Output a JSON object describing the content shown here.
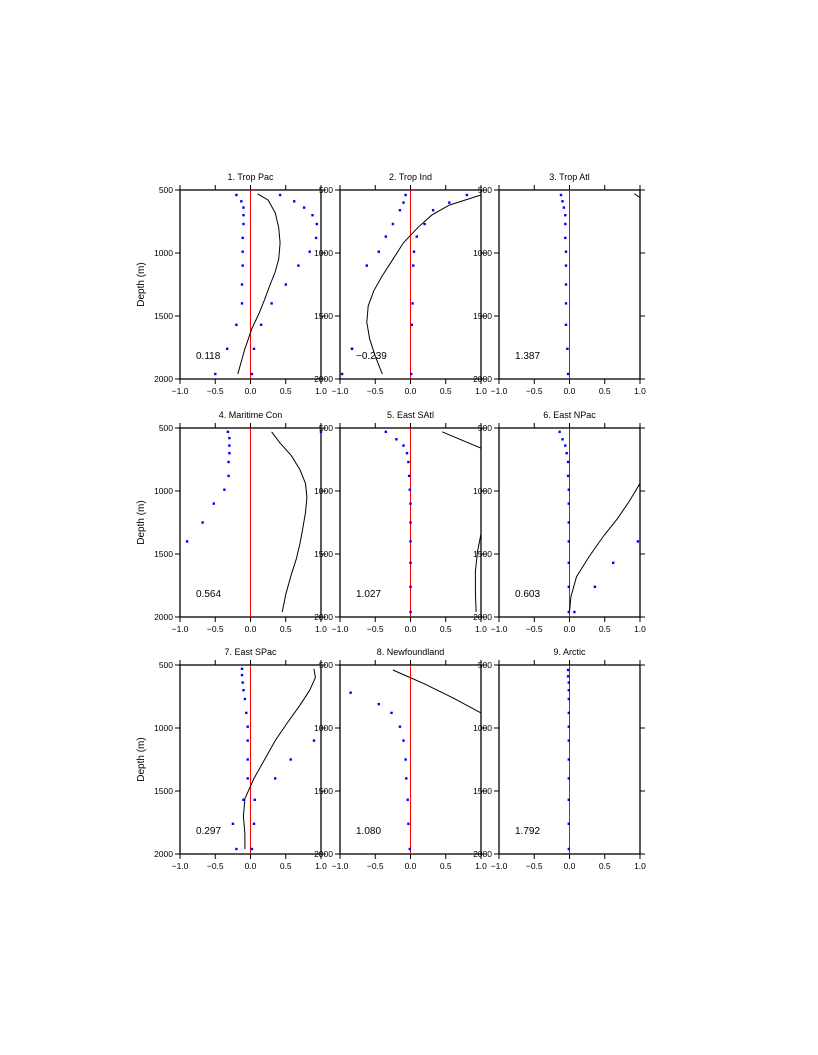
{
  "figure": {
    "ylabel": "Depth (m)"
  },
  "colors": {
    "frame": "#000000",
    "curve": "#000000",
    "zero_line": "#ff0000",
    "dots": "#0000ff"
  },
  "chart_data": [
    {
      "type": "line",
      "title": "1. Trop Pac",
      "annotation": "0.118",
      "xlim": [
        -1,
        1
      ],
      "ylim": [
        2000,
        500
      ],
      "xticks": [
        "−1.0",
        "−0.5",
        "0.0",
        "0.5",
        "1.0"
      ],
      "yticks": [
        "500",
        "1000",
        "1500",
        "2000"
      ],
      "curve": {
        "x": [
          0.1,
          0.25,
          0.35,
          0.4,
          0.42,
          0.4,
          0.35,
          0.28,
          0.2,
          0.12,
          0.02,
          -0.08,
          -0.18
        ],
        "y": [
          530,
          580,
          680,
          800,
          920,
          1050,
          1150,
          1250,
          1370,
          1480,
          1600,
          1760,
          1960
        ]
      },
      "dots_left": {
        "x": [
          -0.2,
          -0.13,
          -0.1,
          -0.1,
          -0.1,
          -0.11,
          -0.11,
          -0.11,
          -0.12,
          -0.12,
          -0.2,
          -0.33,
          -0.5
        ],
        "y": [
          540,
          590,
          640,
          700,
          770,
          880,
          990,
          1100,
          1250,
          1400,
          1570,
          1760,
          1960
        ]
      },
      "dots_right": {
        "x": [
          0.42,
          0.62,
          0.76,
          0.88,
          0.94,
          0.93,
          0.84,
          0.68,
          0.5,
          0.3,
          0.15,
          0.05,
          0.02
        ],
        "y": [
          540,
          590,
          640,
          700,
          770,
          880,
          990,
          1100,
          1250,
          1400,
          1570,
          1760,
          1960
        ]
      }
    },
    {
      "type": "line",
      "title": "2. Trop Ind",
      "annotation": "−0.239",
      "xlim": [
        -1,
        1
      ],
      "ylim": [
        2000,
        500
      ],
      "xticks": [
        "−1.0",
        "−0.5",
        "0.0",
        "0.5",
        "1.0"
      ],
      "yticks": [
        "500",
        "1000",
        "1500",
        "2000"
      ],
      "curve": {
        "x": [
          1.0,
          0.55,
          0.3,
          0.1,
          -0.1,
          -0.25,
          -0.4,
          -0.52,
          -0.6,
          -0.62,
          -0.58,
          -0.5,
          -0.4
        ],
        "y": [
          540,
          620,
          700,
          800,
          920,
          1050,
          1180,
          1300,
          1420,
          1550,
          1680,
          1820,
          1960
        ]
      },
      "dots_left": {
        "x": [
          -0.07,
          -0.1,
          -0.15,
          -0.25,
          -0.35,
          -0.45,
          -0.62,
          -0.83,
          -0.97,
          -0.83
        ],
        "y": [
          540,
          600,
          660,
          770,
          870,
          990,
          1100,
          1760,
          1960,
          1760
        ]
      },
      "dots_right": {
        "x": [
          0.8,
          0.55,
          0.32,
          0.2,
          0.09,
          0.05,
          0.04,
          0.03,
          0.02,
          0.01
        ],
        "y": [
          540,
          600,
          660,
          770,
          870,
          990,
          1100,
          1400,
          1570,
          1960
        ]
      }
    },
    {
      "type": "line",
      "title": "3. Trop Atl",
      "annotation": "1.387",
      "xlim": [
        -1,
        1
      ],
      "ylim": [
        2000,
        500
      ],
      "xticks": [
        "−1.0",
        "−0.5",
        "0.0",
        "0.5",
        "1.0"
      ],
      "yticks": [
        "500",
        "1000",
        "1500",
        "2000"
      ],
      "curve": {
        "x": [
          0.92,
          1.0
        ],
        "y": [
          530,
          560
        ]
      },
      "dots_left": {
        "x": [
          -0.12,
          -0.1,
          -0.08,
          -0.06,
          -0.06,
          -0.06,
          -0.05,
          -0.05,
          -0.05,
          -0.05,
          -0.05,
          -0.03,
          -0.02
        ],
        "y": [
          540,
          590,
          640,
          700,
          770,
          880,
          990,
          1100,
          1250,
          1400,
          1570,
          1760,
          1960
        ]
      },
      "dots_right": {
        "x": [],
        "y": []
      }
    },
    {
      "type": "line",
      "title": "4. Maritime Con",
      "annotation": "0.564",
      "xlim": [
        -1,
        1
      ],
      "ylim": [
        2000,
        500
      ],
      "xticks": [
        "−1.0",
        "−0.5",
        "0.0",
        "0.5",
        "1.0"
      ],
      "yticks": [
        "500",
        "1000",
        "1500",
        "2000"
      ],
      "curve": {
        "x": [
          0.3,
          0.42,
          0.58,
          0.7,
          0.78,
          0.8,
          0.78,
          0.74,
          0.7,
          0.65,
          0.58,
          0.5,
          0.45
        ],
        "y": [
          530,
          620,
          720,
          830,
          940,
          1050,
          1170,
          1300,
          1420,
          1540,
          1660,
          1820,
          1960
        ]
      },
      "dots_left": {
        "x": [
          -0.32,
          -0.3,
          -0.3,
          -0.3,
          -0.31,
          -0.31,
          -0.37,
          -0.52,
          -0.68,
          -0.9
        ],
        "y": [
          530,
          580,
          640,
          700,
          770,
          880,
          990,
          1100,
          1250,
          1400
        ]
      },
      "dots_right": {
        "x": [
          1.0
        ],
        "y": [
          530
        ]
      }
    },
    {
      "type": "line",
      "title": "5. East SAtl",
      "annotation": "1.027",
      "xlim": [
        -1,
        1
      ],
      "ylim": [
        2000,
        500
      ],
      "xticks": [
        "−1.0",
        "−0.5",
        "0.0",
        "0.5",
        "1.0"
      ],
      "yticks": [
        "500",
        "1000",
        "1500",
        "2000"
      ],
      "curve": {
        "x": [
          0.45,
          0.7,
          1.0
        ],
        "y": [
          530,
          590,
          660
        ]
      },
      "curve2": {
        "x": [
          1.0,
          0.95,
          0.92,
          0.92,
          0.93
        ],
        "y": [
          1340,
          1480,
          1640,
          1800,
          1960
        ]
      },
      "dots_left": {
        "x": [
          -0.35,
          -0.2,
          -0.1,
          -0.05,
          -0.03,
          -0.02,
          -0.01,
          0.0,
          0.0,
          0.0,
          0.0,
          0.0,
          0.0
        ],
        "y": [
          530,
          590,
          640,
          700,
          770,
          880,
          990,
          1100,
          1250,
          1400,
          1570,
          1760,
          1960
        ]
      },
      "dots_right": {
        "x": [],
        "y": []
      }
    },
    {
      "type": "line",
      "title": "6. East NPac",
      "annotation": "0.603",
      "xlim": [
        -1,
        1
      ],
      "ylim": [
        2000,
        500
      ],
      "xticks": [
        "−1.0",
        "−0.5",
        "0.0",
        "0.5",
        "1.0"
      ],
      "yticks": [
        "500",
        "1000",
        "1500",
        "2000"
      ],
      "curve": {
        "x": [
          1.0,
          0.85,
          0.68,
          0.48,
          0.28,
          0.1,
          0.02,
          0.0
        ],
        "y": [
          940,
          1080,
          1220,
          1360,
          1520,
          1680,
          1840,
          1960
        ]
      },
      "dots_left": {
        "x": [
          -0.14,
          -0.1,
          -0.06,
          -0.04,
          -0.02,
          -0.02,
          -0.01,
          -0.01,
          -0.01,
          -0.01,
          -0.01,
          -0.01,
          -0.01
        ],
        "y": [
          530,
          590,
          640,
          700,
          770,
          880,
          990,
          1100,
          1250,
          1400,
          1570,
          1760,
          1960
        ]
      },
      "dots_right": {
        "x": [
          0.97,
          0.62,
          0.36,
          0.07
        ],
        "y": [
          1400,
          1570,
          1760,
          1960
        ]
      }
    },
    {
      "type": "line",
      "title": "7. East SPac",
      "annotation": "0.297",
      "xlim": [
        -1,
        1
      ],
      "ylim": [
        2000,
        500
      ],
      "xticks": [
        "−1.0",
        "−0.5",
        "0.0",
        "0.5",
        "1.0"
      ],
      "yticks": [
        "500",
        "1000",
        "1500",
        "2000"
      ],
      "curve": {
        "x": [
          0.9,
          0.92,
          0.84,
          0.7,
          0.52,
          0.35,
          0.2,
          0.05,
          -0.08,
          -0.1,
          -0.08,
          -0.08
        ],
        "y": [
          530,
          600,
          700,
          820,
          960,
          1100,
          1250,
          1400,
          1560,
          1700,
          1840,
          1960
        ]
      },
      "dots_left": {
        "x": [
          -0.12,
          -0.12,
          -0.11,
          -0.1,
          -0.08,
          -0.06,
          -0.04,
          -0.04,
          -0.04,
          -0.04,
          -0.1,
          -0.25,
          -0.2
        ],
        "y": [
          530,
          580,
          640,
          700,
          770,
          880,
          990,
          1100,
          1250,
          1400,
          1570,
          1760,
          1960
        ]
      },
      "dots_right": {
        "x": [
          0.9,
          0.57,
          0.35,
          0.06,
          0.05,
          0.02
        ],
        "y": [
          1100,
          1250,
          1400,
          1570,
          1760,
          1960
        ]
      }
    },
    {
      "type": "line",
      "title": "8. Newfoundland",
      "annotation": "1.080",
      "xlim": [
        -1,
        1
      ],
      "ylim": [
        2000,
        500
      ],
      "xticks": [
        "−1.0",
        "−0.5",
        "0.0",
        "0.5",
        "1.0"
      ],
      "yticks": [
        "500",
        "1000",
        "1500",
        "2000"
      ],
      "curve": {
        "x": [
          -0.25,
          0.2,
          0.6,
          1.0
        ],
        "y": [
          540,
          650,
          760,
          880
        ]
      },
      "dots_left": {
        "x": [
          -0.85,
          -0.45,
          -0.27,
          -0.15,
          -0.1,
          -0.07,
          -0.06,
          -0.04,
          -0.03,
          -0.01
        ],
        "y": [
          720,
          810,
          880,
          990,
          1100,
          1250,
          1400,
          1570,
          1760,
          1960
        ]
      },
      "dots_right": {
        "x": [],
        "y": []
      }
    },
    {
      "type": "line",
      "title": "9. Arctic",
      "annotation": "1.792",
      "xlim": [
        -1,
        1
      ],
      "ylim": [
        2000,
        500
      ],
      "xticks": [
        "−1.0",
        "−0.5",
        "0.0",
        "0.5",
        "1.0"
      ],
      "yticks": [
        "500",
        "1000",
        "1500",
        "2000"
      ],
      "curve": {
        "x": [],
        "y": []
      },
      "dots_left": {
        "x": [
          -0.02,
          -0.02,
          -0.01,
          -0.01,
          -0.01,
          -0.01,
          -0.01,
          -0.01,
          -0.01,
          -0.01,
          -0.01,
          -0.01,
          -0.01
        ],
        "y": [
          540,
          590,
          640,
          700,
          770,
          880,
          990,
          1100,
          1250,
          1400,
          1570,
          1760,
          1960
        ]
      },
      "dots_right": {
        "x": [],
        "y": []
      }
    }
  ]
}
